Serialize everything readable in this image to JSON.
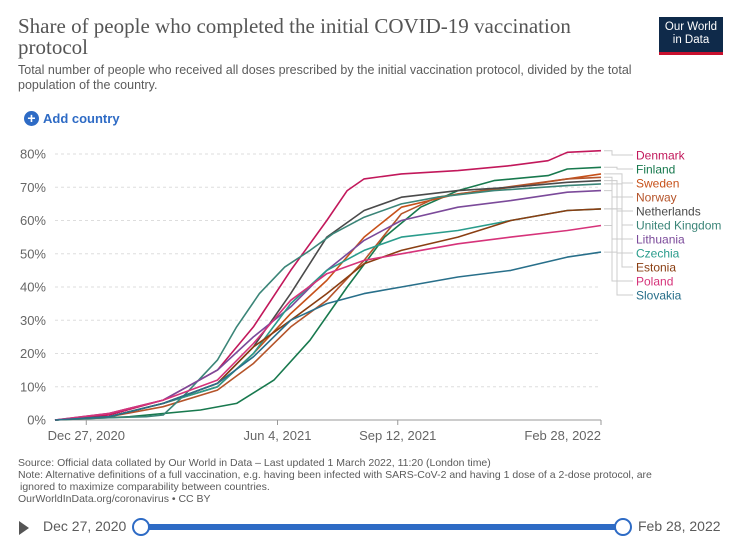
{
  "header": {
    "title": "Share of people who completed the initial COVID-19 vaccination protocol",
    "subtitle": "Total number of people who received all doses prescribed by the initial vaccination protocol, divided by the total population of the country.",
    "logo_line1": "Our World",
    "logo_line2": "in Data",
    "logo_bg": "#0f2a4a",
    "logo_accent": "#c8102e"
  },
  "controls": {
    "add_country_label": "Add country",
    "accent": "#2e6bc5"
  },
  "chart_data": {
    "type": "line",
    "x_ticks": [
      "Dec 27, 2020",
      "Jun 4, 2021",
      "Sep 12, 2021",
      "Feb 28, 2022"
    ],
    "y_ticks": [
      "0%",
      "10%",
      "20%",
      "30%",
      "40%",
      "50%",
      "60%",
      "70%",
      "80%"
    ],
    "xlim": [
      "2020-12-01",
      "2022-02-28"
    ],
    "ylim": [
      0,
      80
    ],
    "grid": "horizontal dashed",
    "legend_placement": "right",
    "series": [
      {
        "name": "Denmark",
        "color": "#c2185b",
        "points": [
          [
            "2020-12-01",
            0
          ],
          [
            "2021-01-15",
            1.5
          ],
          [
            "2021-03-01",
            6
          ],
          [
            "2021-04-15",
            15
          ],
          [
            "2021-05-15",
            28
          ],
          [
            "2021-06-15",
            45
          ],
          [
            "2021-07-15",
            60
          ],
          [
            "2021-08-01",
            69
          ],
          [
            "2021-08-15",
            72.5
          ],
          [
            "2021-09-15",
            74
          ],
          [
            "2021-11-01",
            75
          ],
          [
            "2021-12-15",
            76.5
          ],
          [
            "2022-01-15",
            78
          ],
          [
            "2022-01-31",
            80.5
          ],
          [
            "2022-02-28",
            81
          ]
        ]
      },
      {
        "name": "Finland",
        "color": "#18794e",
        "points": [
          [
            "2020-12-01",
            0
          ],
          [
            "2021-02-01",
            1
          ],
          [
            "2021-04-01",
            3
          ],
          [
            "2021-05-01",
            5
          ],
          [
            "2021-06-01",
            12
          ],
          [
            "2021-07-01",
            24
          ],
          [
            "2021-08-01",
            40
          ],
          [
            "2021-09-01",
            55
          ],
          [
            "2021-10-01",
            64
          ],
          [
            "2021-11-01",
            69
          ],
          [
            "2021-12-01",
            72
          ],
          [
            "2022-01-15",
            73.5
          ],
          [
            "2022-01-31",
            75.5
          ],
          [
            "2022-02-28",
            76
          ]
        ]
      },
      {
        "name": "Sweden",
        "color": "#c7511a",
        "points": [
          [
            "2020-12-01",
            0
          ],
          [
            "2021-01-15",
            1
          ],
          [
            "2021-03-01",
            5
          ],
          [
            "2021-04-15",
            10
          ],
          [
            "2021-05-15",
            20
          ],
          [
            "2021-06-15",
            32
          ],
          [
            "2021-07-15",
            42
          ],
          [
            "2021-08-15",
            55
          ],
          [
            "2021-09-15",
            64
          ],
          [
            "2021-11-01",
            68
          ],
          [
            "2021-12-15",
            70
          ],
          [
            "2022-01-31",
            72.5
          ],
          [
            "2022-02-28",
            74
          ]
        ]
      },
      {
        "name": "Norway",
        "color": "#b5542a",
        "points": [
          [
            "2020-12-01",
            0
          ],
          [
            "2021-01-15",
            1
          ],
          [
            "2021-03-01",
            4
          ],
          [
            "2021-04-15",
            9
          ],
          [
            "2021-05-15",
            17
          ],
          [
            "2021-06-15",
            28
          ],
          [
            "2021-07-15",
            36
          ],
          [
            "2021-08-15",
            48
          ],
          [
            "2021-09-15",
            62
          ],
          [
            "2021-10-15",
            67
          ],
          [
            "2021-12-01",
            69.5
          ],
          [
            "2022-01-31",
            72.5
          ],
          [
            "2022-02-28",
            73
          ]
        ]
      },
      {
        "name": "Netherlands",
        "color": "#4a4a4a",
        "points": [
          [
            "2020-12-01",
            0
          ],
          [
            "2021-01-15",
            1
          ],
          [
            "2021-03-01",
            5
          ],
          [
            "2021-04-15",
            11
          ],
          [
            "2021-05-15",
            22
          ],
          [
            "2021-06-15",
            38
          ],
          [
            "2021-07-15",
            55
          ],
          [
            "2021-08-15",
            63
          ],
          [
            "2021-09-15",
            67
          ],
          [
            "2021-11-01",
            69
          ],
          [
            "2021-12-15",
            70
          ],
          [
            "2022-01-31",
            71.5
          ],
          [
            "2022-02-28",
            72
          ]
        ]
      },
      {
        "name": "United Kingdom",
        "color": "#3b8578",
        "points": [
          [
            "2020-12-01",
            0
          ],
          [
            "2021-01-15",
            0.7
          ],
          [
            "2021-02-15",
            1
          ],
          [
            "2021-03-01",
            1.5
          ],
          [
            "2021-03-20",
            8
          ],
          [
            "2021-04-15",
            18
          ],
          [
            "2021-05-01",
            28
          ],
          [
            "2021-05-20",
            38
          ],
          [
            "2021-06-10",
            46
          ],
          [
            "2021-07-01",
            51
          ],
          [
            "2021-07-20",
            56
          ],
          [
            "2021-08-15",
            61
          ],
          [
            "2021-09-15",
            65
          ],
          [
            "2021-10-15",
            67
          ],
          [
            "2021-12-01",
            69
          ],
          [
            "2022-01-31",
            70.5
          ],
          [
            "2022-02-28",
            71
          ]
        ]
      },
      {
        "name": "Lithuania",
        "color": "#7b4a9a",
        "points": [
          [
            "2020-12-01",
            0
          ],
          [
            "2021-01-15",
            2
          ],
          [
            "2021-03-01",
            6
          ],
          [
            "2021-04-15",
            15
          ],
          [
            "2021-05-15",
            25
          ],
          [
            "2021-06-15",
            34
          ],
          [
            "2021-07-15",
            45
          ],
          [
            "2021-08-15",
            54
          ],
          [
            "2021-09-15",
            60
          ],
          [
            "2021-11-01",
            64
          ],
          [
            "2021-12-15",
            66
          ],
          [
            "2022-01-31",
            68.5
          ],
          [
            "2022-02-28",
            69
          ]
        ]
      },
      {
        "name": "Czechia",
        "color": "#2a9c8c",
        "points": [
          [
            "2020-12-01",
            0
          ],
          [
            "2021-01-15",
            1
          ],
          [
            "2021-03-01",
            5
          ],
          [
            "2021-04-15",
            10
          ],
          [
            "2021-05-15",
            20
          ],
          [
            "2021-06-15",
            35
          ],
          [
            "2021-07-15",
            45
          ],
          [
            "2021-08-15",
            51
          ],
          [
            "2021-09-15",
            55
          ],
          [
            "2021-11-01",
            57
          ],
          [
            "2021-12-15",
            60
          ],
          [
            "2022-01-31",
            63
          ],
          [
            "2022-02-28",
            63.5
          ]
        ]
      },
      {
        "name": "Estonia",
        "color": "#8a3e12",
        "points": [
          [
            "2020-12-01",
            0
          ],
          [
            "2021-01-15",
            1
          ],
          [
            "2021-03-01",
            5
          ],
          [
            "2021-04-15",
            11
          ],
          [
            "2021-05-15",
            22
          ],
          [
            "2021-06-15",
            30
          ],
          [
            "2021-07-15",
            38
          ],
          [
            "2021-08-15",
            47
          ],
          [
            "2021-09-15",
            51
          ],
          [
            "2021-11-01",
            55
          ],
          [
            "2021-12-15",
            60
          ],
          [
            "2022-01-31",
            63
          ],
          [
            "2022-02-28",
            63.5
          ]
        ]
      },
      {
        "name": "Poland",
        "color": "#d6337a",
        "points": [
          [
            "2020-12-01",
            0
          ],
          [
            "2021-01-15",
            2
          ],
          [
            "2021-03-01",
            6
          ],
          [
            "2021-04-15",
            12
          ],
          [
            "2021-05-15",
            23
          ],
          [
            "2021-06-15",
            36
          ],
          [
            "2021-07-15",
            44
          ],
          [
            "2021-08-15",
            48
          ],
          [
            "2021-09-15",
            50
          ],
          [
            "2021-11-01",
            53
          ],
          [
            "2021-12-15",
            55
          ],
          [
            "2022-01-31",
            57
          ],
          [
            "2022-02-28",
            58.5
          ]
        ]
      },
      {
        "name": "Slovakia",
        "color": "#286f8a",
        "points": [
          [
            "2020-12-01",
            0
          ],
          [
            "2021-01-15",
            1
          ],
          [
            "2021-03-01",
            5
          ],
          [
            "2021-04-15",
            11
          ],
          [
            "2021-05-15",
            19
          ],
          [
            "2021-06-15",
            30
          ],
          [
            "2021-07-15",
            35
          ],
          [
            "2021-08-15",
            38
          ],
          [
            "2021-09-15",
            40
          ],
          [
            "2021-11-01",
            43
          ],
          [
            "2021-12-15",
            45
          ],
          [
            "2022-01-31",
            49
          ],
          [
            "2022-02-28",
            50.5
          ]
        ]
      }
    ]
  },
  "footer": {
    "source": "Source: Official data collated by Our World in Data – Last updated 1 March 2022, 11:20 (London time)",
    "note1": "Note: Alternative definitions of a full vaccination, e.g. having been infected with SARS-CoV-2 and having 1 dose of a 2-dose protocol, are",
    "note2": "ignored to maximize comparability between countries.",
    "credit": "OurWorldInData.org/coronavirus • CC BY"
  },
  "timeline": {
    "start_label": "Dec 27, 2020",
    "end_label": "Feb 28, 2022",
    "start_fraction": 0,
    "end_fraction": 1
  }
}
